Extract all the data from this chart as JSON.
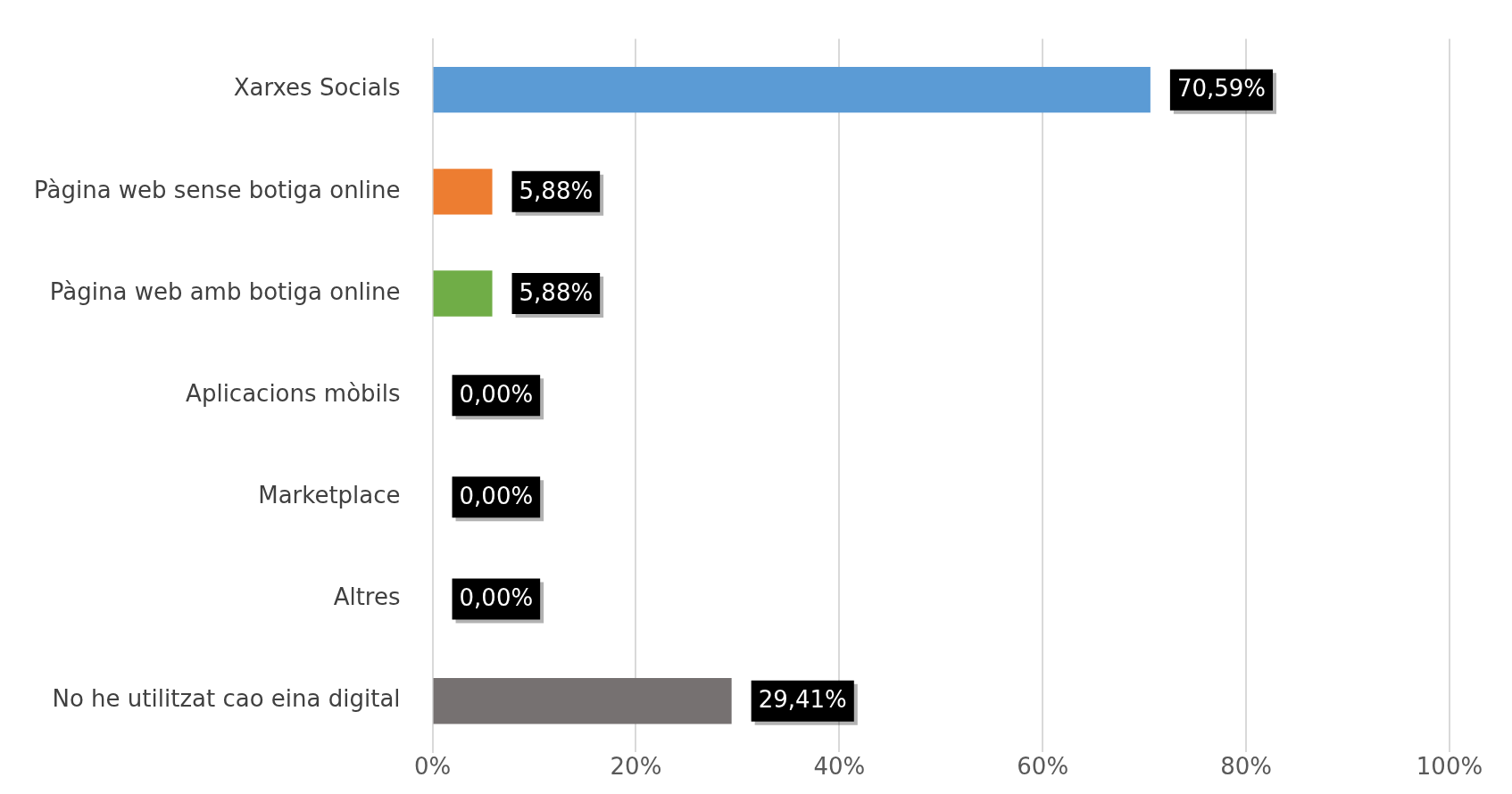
{
  "chart_data": {
    "type": "bar",
    "orientation": "horizontal",
    "categories": [
      "Xarxes Socials",
      "Pàgina web sense botiga online",
      "Pàgina web amb botiga online",
      "Aplicacions mòbils",
      "Marketplace",
      "Altres",
      "No he utilitzat cao eina digital"
    ],
    "values": [
      70.59,
      5.88,
      5.88,
      0,
      0,
      0,
      29.41
    ],
    "colors": [
      "#5b9bd5",
      "#ed7d31",
      "#70ad47",
      "#ffc000",
      "#4472c4",
      "#264478",
      "#767171"
    ],
    "value_labels": [
      "70,59%",
      "5,88%",
      "5,88%",
      "0,00%",
      "0,00%",
      "0,00%",
      "29,41%"
    ],
    "xlim": [
      0,
      100
    ],
    "xticks": [
      {
        "value": 0,
        "label": "0%"
      },
      {
        "value": 20,
        "label": "20%"
      },
      {
        "value": 40,
        "label": "40%"
      },
      {
        "value": 60,
        "label": "60%"
      },
      {
        "value": 80,
        "label": "80%"
      },
      {
        "value": 100,
        "label": "100%"
      }
    ],
    "grid": "x",
    "legend": false
  }
}
